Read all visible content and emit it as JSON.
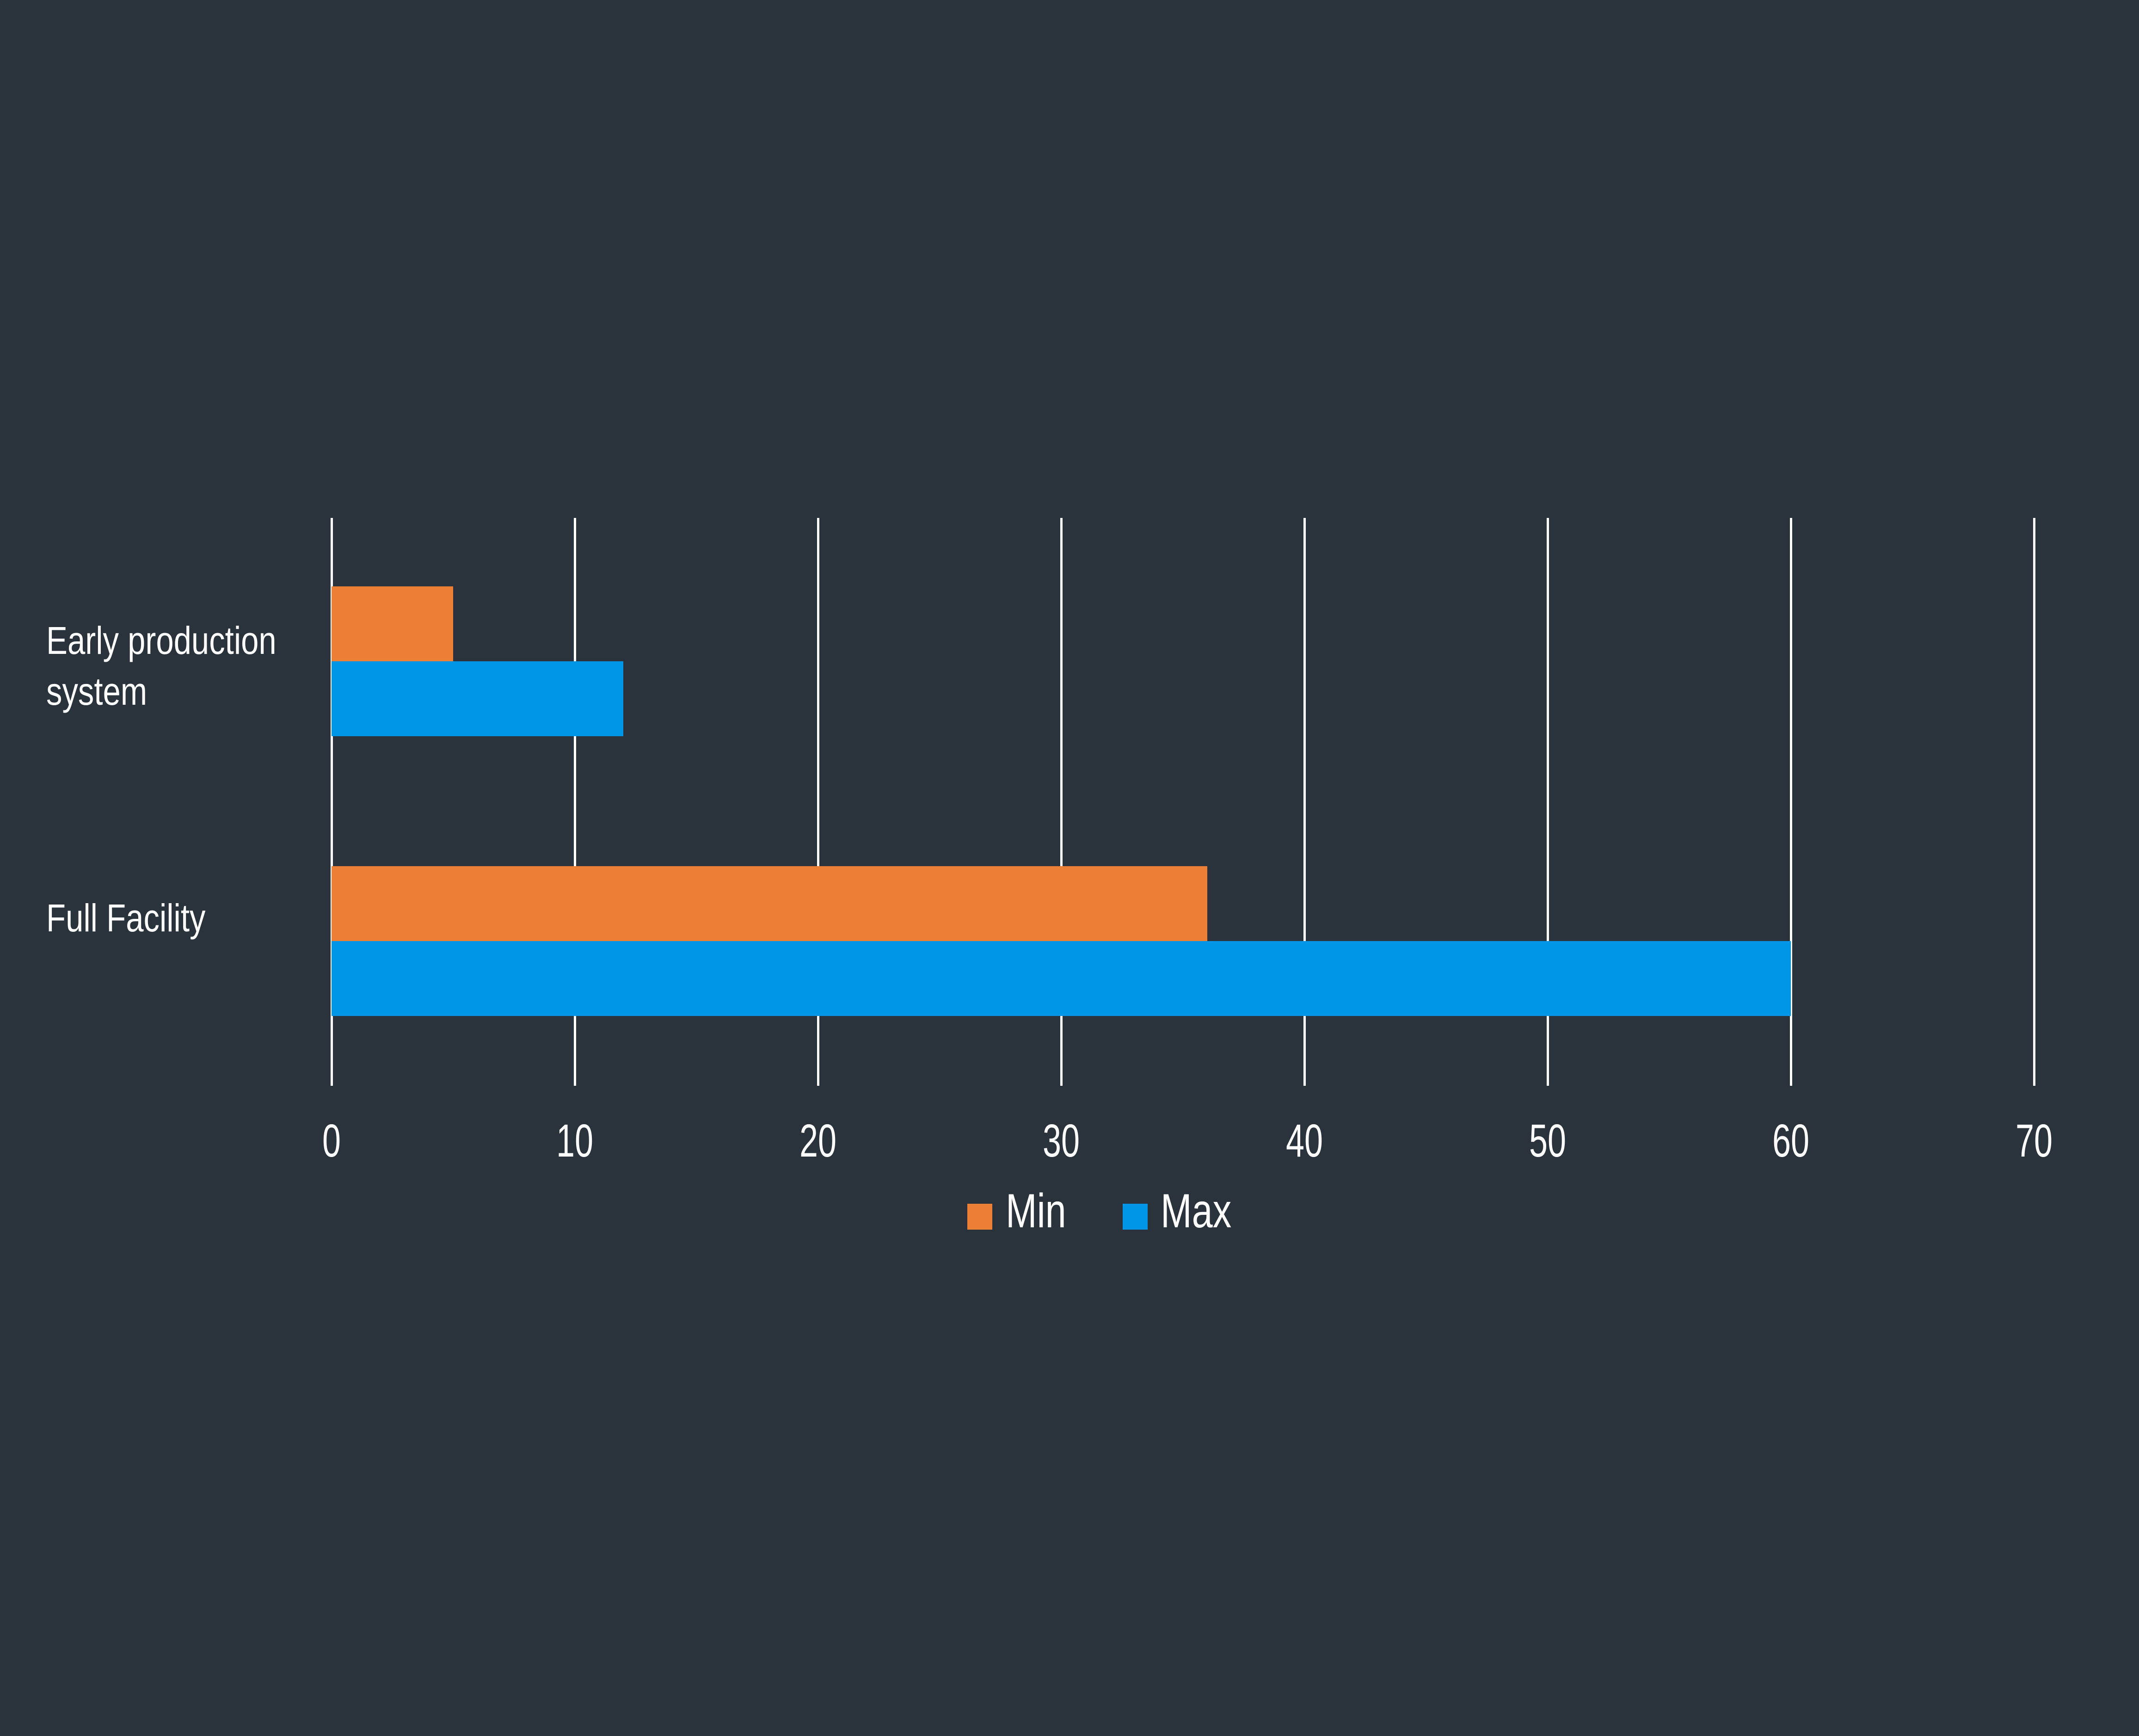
{
  "chart_data": {
    "type": "bar",
    "orientation": "horizontal",
    "title": "",
    "xlabel": "",
    "ylabel": "",
    "categories": [
      "Early production system",
      "Full Facility"
    ],
    "category_label_lines": [
      [
        "Early production",
        "system"
      ],
      [
        "Full Facility"
      ]
    ],
    "series": [
      {
        "name": "Min",
        "color": "#eb8036",
        "values": [
          5,
          36
        ]
      },
      {
        "name": "Max",
        "color": "#0096e8",
        "values": [
          12,
          60
        ]
      }
    ],
    "xlim": [
      0,
      70
    ],
    "x_ticks": [
      "0",
      "10",
      "20",
      "30",
      "40",
      "50",
      "60",
      "70"
    ],
    "grid": true,
    "legend_position": "bottom",
    "background": "#2a323b"
  },
  "legend": {
    "min_label": "Min",
    "max_label": "Max"
  }
}
